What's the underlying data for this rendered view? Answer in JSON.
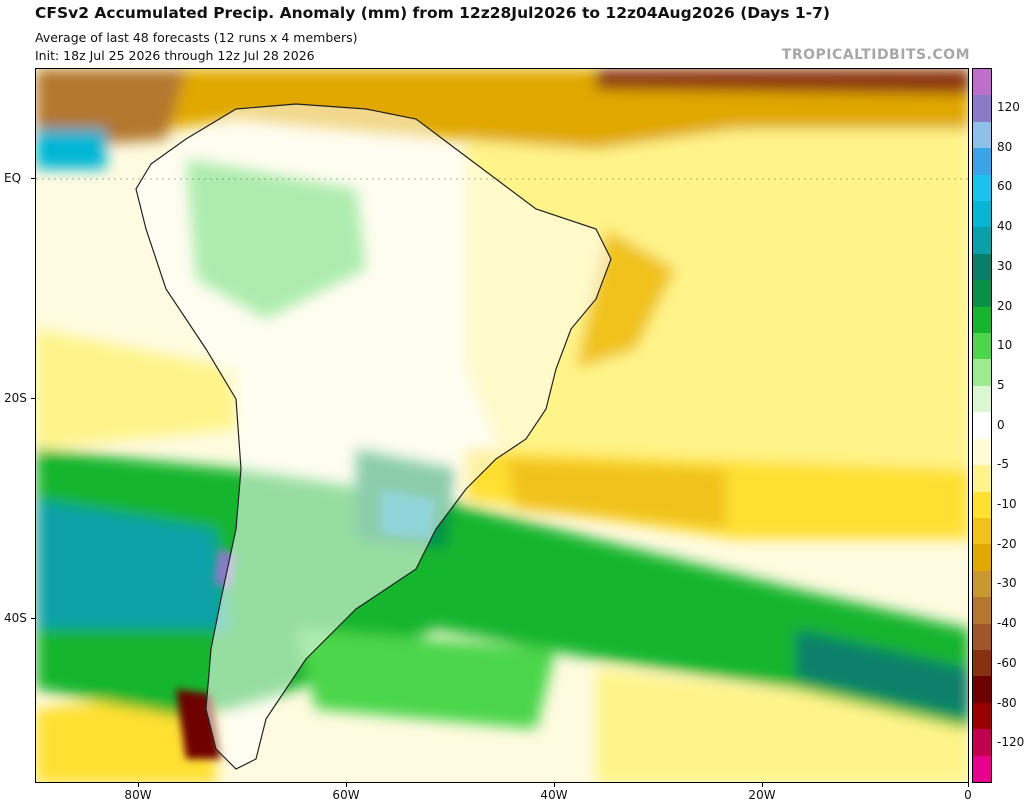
{
  "header": {
    "title": "CFSv2 Accumulated Precip. Anomaly (mm) from 12z28Jul2026 to 12z04Aug2026 (Days 1-7)",
    "subtitle": "Average of last 48 forecasts (12 runs x 4 members)",
    "init": "Init: 18z Jul 25 2026 through 12z Jul 28 2026",
    "watermark": "TROPICALTIDBITS.COM"
  },
  "map": {
    "lat_labels": [
      "EQ",
      "20S",
      "40S"
    ],
    "lon_labels": [
      "80W",
      "60W",
      "40W",
      "20W",
      "0"
    ],
    "ocean_color": "#fffbe0",
    "land_color": "#ffffff"
  },
  "colorbar": {
    "colors": [
      "#e6008c",
      "#c1004f",
      "#9a0000",
      "#6e0000",
      "#8a3010",
      "#a0552a",
      "#b3772e",
      "#c89a2e",
      "#e0a800",
      "#f1c21b",
      "#ffe033",
      "#fff48a",
      "#fffbd6",
      "#ffffff",
      "#dcf6d2",
      "#9eea90",
      "#4cd64c",
      "#16b52e",
      "#069146",
      "#077f6a",
      "#0aa0a8",
      "#06b6d4",
      "#18c4ef",
      "#3aa4ea",
      "#8ec0ea",
      "#8a7bc6",
      "#bd6fc9"
    ],
    "labels": [
      "-120",
      "-80",
      "-60",
      "-40",
      "-30",
      "-20",
      "-10",
      "-5",
      "0",
      "5",
      "10",
      "20",
      "30",
      "40",
      "60",
      "80",
      "120"
    ]
  }
}
